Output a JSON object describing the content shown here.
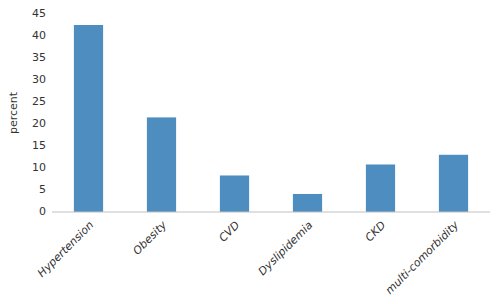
{
  "chart_data": {
    "type": "bar",
    "categories": [
      "Hypertension",
      "Obesity",
      "CVD",
      "Dyslipidemia",
      "CKD",
      "multi-comorbidity"
    ],
    "values": [
      42.5,
      21.5,
      8.3,
      4.1,
      10.8,
      13.0
    ],
    "color": "#4d8dc0",
    "ylabel": "percent",
    "ylim": [
      0,
      45
    ],
    "yticks": [
      0,
      5,
      10,
      15,
      20,
      25,
      30,
      35,
      40,
      45
    ],
    "grid": false
  }
}
